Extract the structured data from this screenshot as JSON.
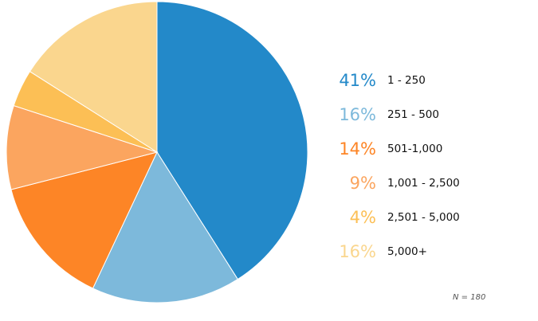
{
  "chart_data": {
    "type": "pie",
    "title": "",
    "note": "N = 180",
    "slices": [
      {
        "label": "1 - 250",
        "percent": 41,
        "pct_text": "41%",
        "color": "#2389c9"
      },
      {
        "label": "251 - 500",
        "percent": 16,
        "pct_text": "16%",
        "color": "#7db9db"
      },
      {
        "label": "501-1,000",
        "percent": 14,
        "pct_text": "14%",
        "color": "#fd8526"
      },
      {
        "label": "1,001 - 2,500",
        "percent": 9,
        "pct_text": "9%",
        "color": "#fba55f"
      },
      {
        "label": "2,501 - 5,000",
        "percent": 4,
        "pct_text": "4%",
        "color": "#fcbf55"
      },
      {
        "label": "5,000+",
        "percent": 16,
        "pct_text": "16%",
        "color": "#fad68e"
      }
    ]
  }
}
